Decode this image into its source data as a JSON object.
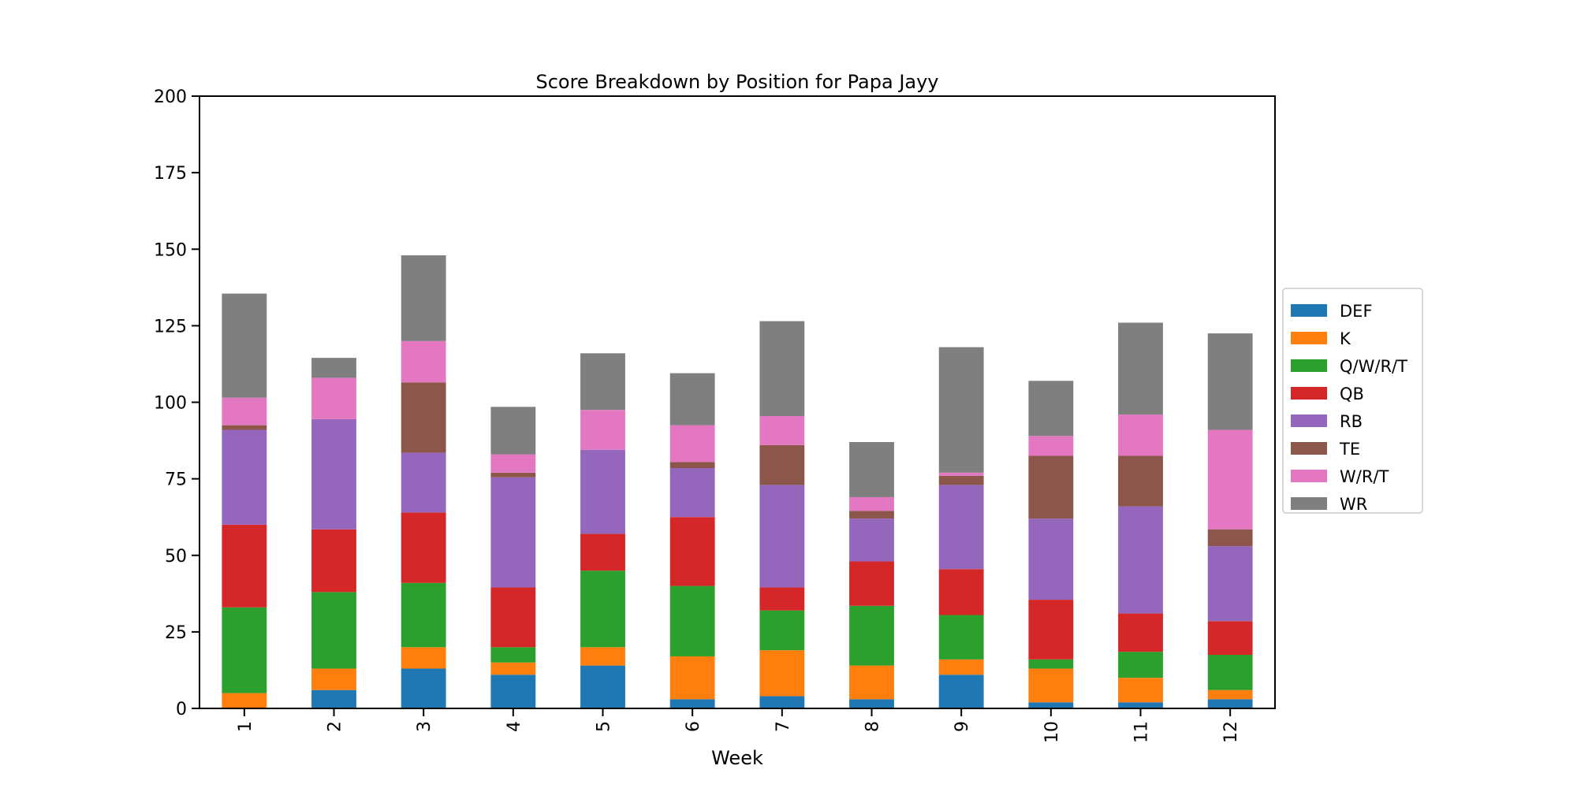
{
  "chart_data": {
    "type": "bar",
    "stacked": true,
    "title": "Score Breakdown by Position for Papa Jayy",
    "xlabel": "Week",
    "ylabel": "",
    "ylim": [
      0,
      200
    ],
    "yticks": [
      0,
      25,
      50,
      75,
      100,
      125,
      150,
      175,
      200
    ],
    "categories": [
      "1",
      "2",
      "3",
      "4",
      "5",
      "6",
      "7",
      "8",
      "9",
      "10",
      "11",
      "12"
    ],
    "grid": false,
    "legend_position": "right",
    "series": [
      {
        "name": "DEF",
        "color": "#1f77b4",
        "values": [
          0,
          6,
          13,
          11,
          14,
          3,
          4,
          3,
          11,
          2,
          2,
          3
        ]
      },
      {
        "name": "K",
        "color": "#ff7f0e",
        "values": [
          5,
          7,
          7,
          4,
          6,
          14,
          15,
          11,
          5,
          11,
          8,
          3
        ]
      },
      {
        "name": "Q/W/R/T",
        "color": "#2ca02c",
        "values": [
          28,
          25,
          21,
          5,
          25,
          23,
          13,
          19.5,
          14.5,
          3,
          8.5,
          11.5
        ]
      },
      {
        "name": "QB",
        "color": "#d62728",
        "values": [
          27,
          20.5,
          23,
          19.5,
          12,
          22.5,
          7.5,
          14.5,
          15,
          19.5,
          12.5,
          11
        ]
      },
      {
        "name": "RB",
        "color": "#9467bd",
        "values": [
          31,
          36,
          19.5,
          36,
          27.5,
          16,
          33.5,
          14,
          27.5,
          26.5,
          35,
          24.5
        ]
      },
      {
        "name": "TE",
        "color": "#8c564b",
        "values": [
          1.5,
          0,
          23,
          1.5,
          0,
          2,
          13,
          2.5,
          3,
          20.5,
          16.5,
          5.5
        ]
      },
      {
        "name": "W/R/T",
        "color": "#e377c2",
        "values": [
          9,
          13.5,
          13.5,
          6,
          13,
          12,
          9.5,
          4.5,
          1,
          6.5,
          13.5,
          32.5
        ]
      },
      {
        "name": "WR",
        "color": "#7f7f7f",
        "values": [
          34,
          6.5,
          28,
          15.5,
          18.5,
          17,
          31,
          18,
          41,
          18,
          30,
          31.5
        ]
      }
    ]
  }
}
